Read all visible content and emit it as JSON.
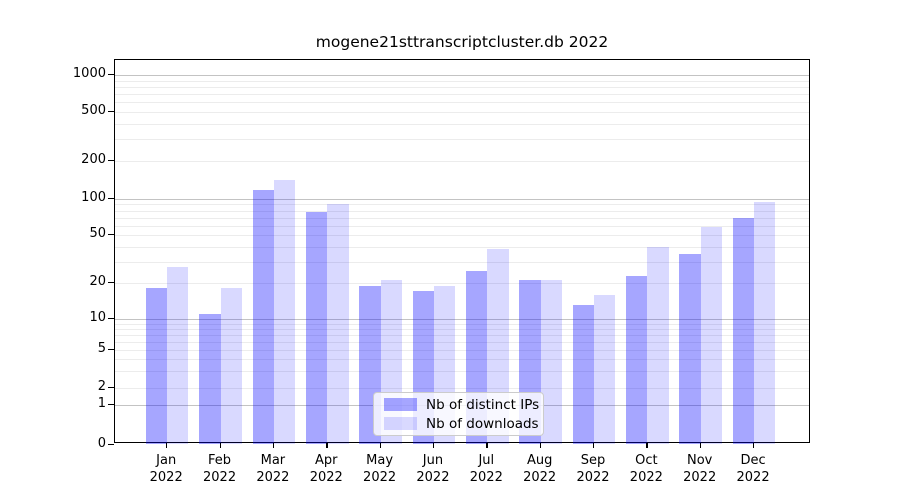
{
  "title": "mogene21sttranscriptcluster.db 2022",
  "colors": {
    "bar_distinct_ips": "rgba(0,0,255,0.35)",
    "bar_downloads": "rgba(0,0,255,0.15)",
    "major_gridline": "#c3c3c3",
    "minor_gridline": "#ececec",
    "axis": "#000000"
  },
  "chart_data": {
    "type": "bar",
    "title": "mogene21sttranscriptcluster.db 2022",
    "categories": [
      "Jan",
      "Feb",
      "Mar",
      "Apr",
      "May",
      "Jun",
      "Jul",
      "Aug",
      "Sep",
      "Oct",
      "Nov",
      "Dec"
    ],
    "year": "2022",
    "series": [
      {
        "name": "Nb of distinct IPs",
        "color": "rgba(0,0,255,0.35)",
        "values": [
          18,
          11,
          117,
          78,
          19,
          17,
          25,
          21,
          13,
          23,
          35,
          70
        ]
      },
      {
        "name": "Nb of downloads",
        "color": "rgba(0,0,255,0.15)",
        "values": [
          27,
          18,
          142,
          91,
          21,
          19,
          38,
          21,
          16,
          40,
          58,
          95
        ]
      }
    ],
    "y_ticks": [
      1000,
      500,
      200,
      100,
      50,
      20,
      10,
      5,
      2,
      1,
      0
    ],
    "y_scale": "symlog",
    "ylim": [
      0,
      1000
    ],
    "xlabel": "",
    "ylabel": "",
    "grid": true,
    "legend_position": "lower center"
  }
}
